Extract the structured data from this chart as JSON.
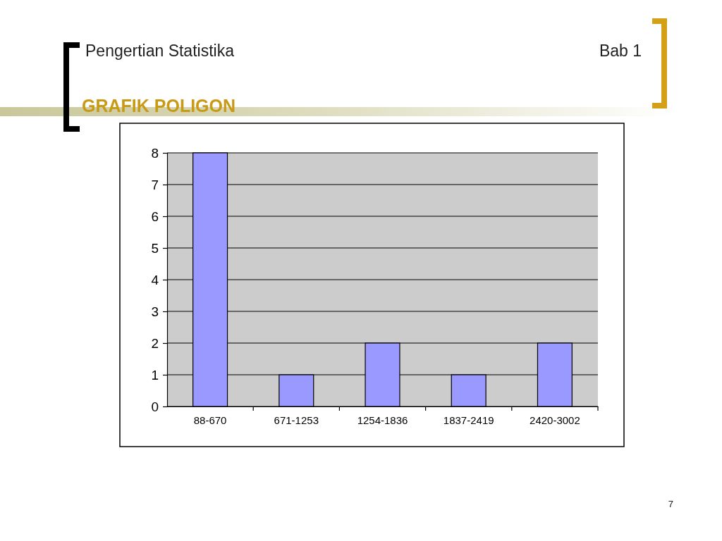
{
  "chart_data": {
    "type": "bar",
    "title": "GRAFIK POLIGON",
    "subtitle": "Pengertian Statistika",
    "annotations": [
      "Bab 1",
      "7"
    ],
    "categories": [
      "88-670",
      "671-1253",
      "1254-1836",
      "1837-2419",
      "2420-3002"
    ],
    "values": [
      8,
      1,
      2,
      1,
      2
    ],
    "color": "#9999ff",
    "ylim": [
      0,
      8
    ],
    "yticks": [
      0,
      1,
      2,
      3,
      4,
      5,
      6,
      7,
      8
    ],
    "grid": "y"
  }
}
